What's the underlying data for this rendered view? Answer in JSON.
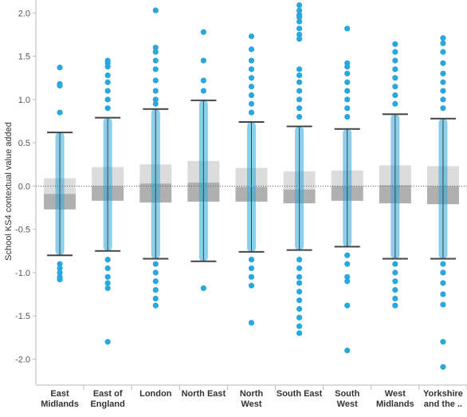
{
  "chart_data": {
    "type": "box-and-dot",
    "ylabel": "School KS4 contextual value added",
    "ylim": [
      -2.3,
      2.15
    ],
    "yticks": [
      2.0,
      1.5,
      1.0,
      0.5,
      0.0,
      -0.5,
      -1.0,
      -1.5,
      -2.0
    ],
    "ytick_labels": [
      "2.0",
      "1.5",
      "1.0",
      "0.5",
      "0.0",
      "-0.5",
      "-1.0",
      "-1.5",
      "-2.0"
    ],
    "reference_line": 0.0,
    "categories": [
      {
        "label_lines": [
          "East",
          "Midlands"
        ],
        "whisker_high": 0.62,
        "q3": 0.09,
        "median": -0.09,
        "q1": -0.27,
        "whisker_low": -0.8,
        "outliers": [
          1.37,
          1.18,
          1.16,
          0.85,
          -0.9,
          -0.95,
          -1.0,
          -1.05,
          -1.08
        ]
      },
      {
        "label_lines": [
          "East of",
          "England"
        ],
        "whisker_high": 0.79,
        "q3": 0.22,
        "median": 0.0,
        "q1": -0.17,
        "whisker_low": -0.75,
        "outliers": [
          1.45,
          1.42,
          1.38,
          1.28,
          1.2,
          1.1,
          1.0,
          0.9,
          -0.85,
          -0.95,
          -1.05,
          -1.12,
          -1.18,
          -1.8
        ]
      },
      {
        "label_lines": [
          "London"
        ],
        "whisker_high": 0.89,
        "q3": 0.25,
        "median": 0.03,
        "q1": -0.19,
        "whisker_low": -0.84,
        "outliers": [
          2.03,
          1.6,
          1.55,
          1.45,
          1.35,
          1.22,
          1.1,
          1.0,
          0.95,
          -0.9,
          -1.0,
          -1.1,
          -1.2,
          -1.3,
          -1.38
        ]
      },
      {
        "label_lines": [
          "North East"
        ],
        "whisker_high": 0.99,
        "q3": 0.29,
        "median": 0.04,
        "q1": -0.18,
        "whisker_low": -0.87,
        "outliers": [
          1.78,
          1.45,
          1.22,
          1.1,
          -1.18
        ]
      },
      {
        "label_lines": [
          "North",
          "West"
        ],
        "whisker_high": 0.74,
        "q3": 0.21,
        "median": -0.01,
        "q1": -0.18,
        "whisker_low": -0.76,
        "outliers": [
          1.73,
          1.58,
          1.45,
          1.35,
          1.25,
          1.15,
          1.05,
          0.95,
          0.85,
          -0.85,
          -0.95,
          -1.05,
          -1.15,
          -1.58
        ]
      },
      {
        "label_lines": [
          "South East"
        ],
        "whisker_high": 0.69,
        "q3": 0.17,
        "median": -0.04,
        "q1": -0.2,
        "whisker_low": -0.74,
        "outliers": [
          2.09,
          2.03,
          1.98,
          1.95,
          1.9,
          1.82,
          1.75,
          1.7,
          1.35,
          1.28,
          1.2,
          1.1,
          1.0,
          0.9,
          0.8,
          -0.85,
          -0.95,
          -1.05,
          -1.12,
          -1.22,
          -1.32,
          -1.42,
          -1.52,
          -1.62,
          -1.7
        ]
      },
      {
        "label_lines": [
          "South",
          "West"
        ],
        "whisker_high": 0.66,
        "q3": 0.18,
        "median": 0.0,
        "q1": -0.17,
        "whisker_low": -0.7,
        "outliers": [
          1.82,
          1.42,
          1.38,
          1.3,
          1.2,
          1.1,
          1.0,
          0.9,
          0.8,
          -0.8,
          -0.9,
          -1.05,
          -1.1,
          -1.38,
          -1.9
        ]
      },
      {
        "label_lines": [
          "West",
          "Midlands"
        ],
        "whisker_high": 0.83,
        "q3": 0.24,
        "median": 0.01,
        "q1": -0.2,
        "whisker_low": -0.84,
        "outliers": [
          1.64,
          1.55,
          1.45,
          1.35,
          1.25,
          1.15,
          1.05,
          0.95,
          -0.9,
          -1.0,
          -1.1,
          -1.2,
          -1.3,
          -1.38
        ]
      },
      {
        "label_lines": [
          "Yorkshire",
          "and the .."
        ],
        "whisker_high": 0.78,
        "q3": 0.23,
        "median": 0.0,
        "q1": -0.21,
        "whisker_low": -0.84,
        "outliers": [
          1.71,
          1.65,
          1.55,
          1.42,
          1.3,
          1.2,
          1.1,
          1.0,
          0.9,
          -0.9,
          -1.0,
          -1.12,
          -1.25,
          -1.37,
          -1.8,
          -2.09
        ]
      }
    ],
    "colors": {
      "points": "#2aa7dc",
      "box_upper": "#dcdcdc",
      "box_lower": "#b0b0b0",
      "whisker": "#444444",
      "zero_line": "#666666",
      "axis": "#bbbbbb"
    },
    "grid": false,
    "legend": "none"
  }
}
